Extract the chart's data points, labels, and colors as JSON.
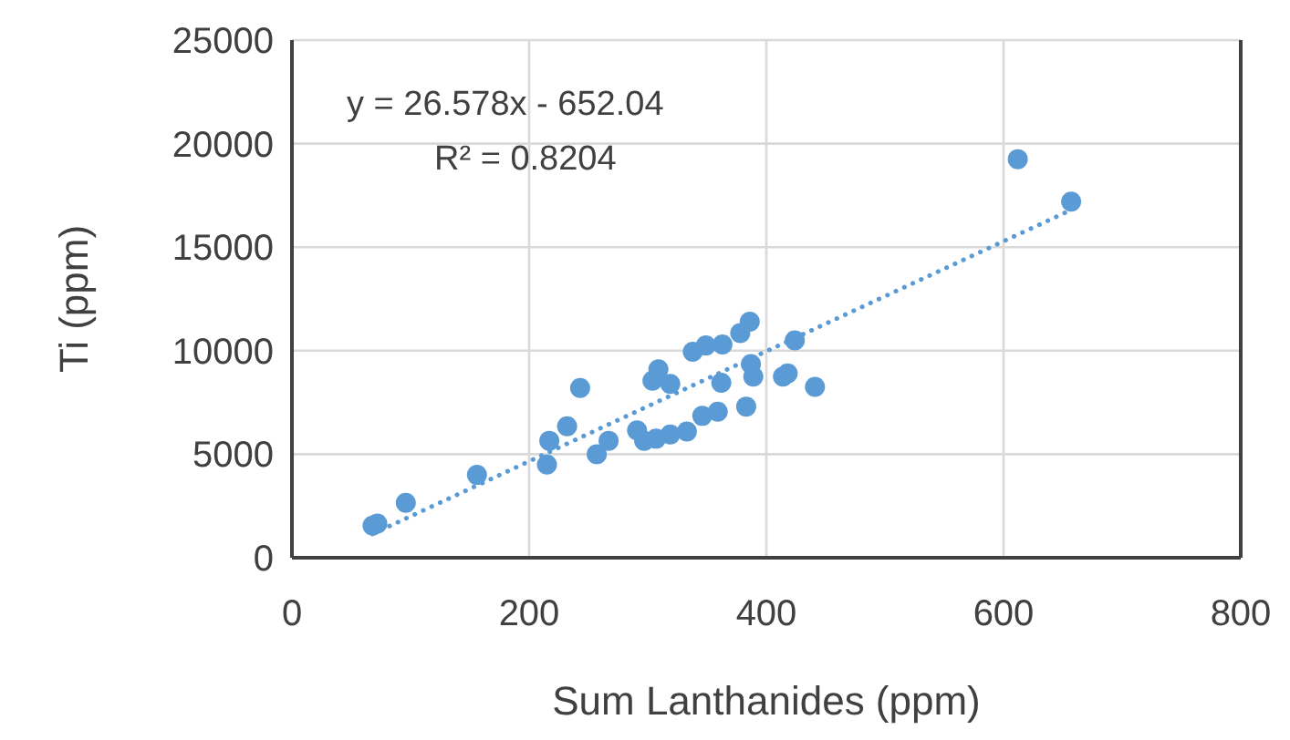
{
  "chart_data": {
    "type": "scatter",
    "xlabel": "Sum Lanthanides (ppm)",
    "ylabel": "Ti (ppm)",
    "xlim": [
      0,
      800
    ],
    "xticks": [
      0,
      200,
      400,
      600,
      800
    ],
    "ylim": [
      0,
      25000
    ],
    "yticks": [
      0,
      5000,
      10000,
      15000,
      20000,
      25000
    ],
    "grid": true,
    "marker": "circle",
    "annotations": [
      "y = 26.578x - 652.04",
      "R² = 0.8204"
    ],
    "series": [
      {
        "color": "#5b9bd5",
        "x": [
          68,
          72,
          96,
          156,
          215,
          217,
          232,
          243,
          257,
          267,
          291,
          297,
          307,
          319,
          333,
          346,
          359,
          383,
          304,
          309,
          319,
          338,
          349,
          363,
          362,
          378,
          386,
          387,
          389,
          414,
          418,
          424,
          441,
          612,
          657
        ],
        "values": [
          1550,
          1650,
          2650,
          4000,
          4500,
          5650,
          6350,
          8200,
          5000,
          5650,
          6150,
          5650,
          5750,
          5950,
          6100,
          6850,
          7050,
          7300,
          8550,
          9100,
          8400,
          9950,
          10250,
          10300,
          8450,
          10850,
          11400,
          9350,
          8750,
          8750,
          8900,
          10500,
          8250,
          19250,
          17200
        ]
      },
      {
        "type": "line",
        "color": "#5b9bd5",
        "line_style": "dotted",
        "marker": "none",
        "x": [
          68,
          657
        ],
        "values": [
          1150,
          16800
        ]
      }
    ]
  }
}
